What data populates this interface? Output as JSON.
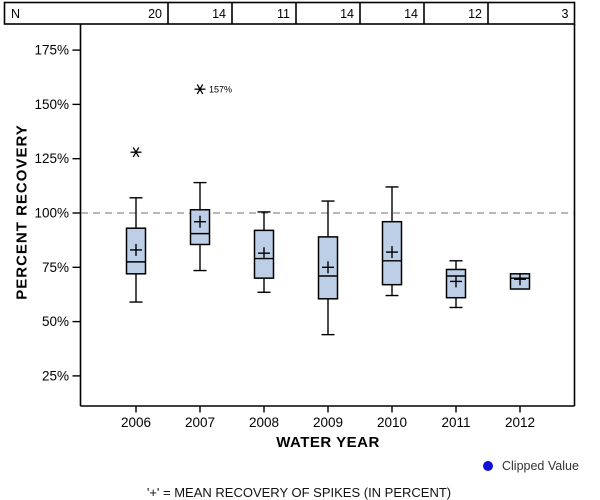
{
  "chart_data": {
    "type": "boxplot",
    "title": "",
    "xlabel": "WATER YEAR",
    "ylabel": "PERCENT RECOVERY",
    "footnote": "'+' = MEAN RECOVERY OF SPIKES (IN PERCENT)",
    "n_label": "N",
    "categories": [
      "2006",
      "2007",
      "2008",
      "2009",
      "2010",
      "2011",
      "2012"
    ],
    "n_values": [
      20,
      14,
      11,
      14,
      14,
      12,
      3
    ],
    "y_ticks": [
      {
        "value": 175,
        "label": "175%"
      },
      {
        "value": 150,
        "label": "150%"
      },
      {
        "value": 125,
        "label": "125%"
      },
      {
        "value": 100,
        "label": "100%"
      },
      {
        "value": 75,
        "label": "75%"
      },
      {
        "value": 50,
        "label": "50%"
      },
      {
        "value": 25,
        "label": "25%"
      }
    ],
    "ylim": [
      10,
      188
    ],
    "grid": false,
    "reference_line": {
      "value": 100,
      "style": "dashed",
      "color": "#8c8c8c"
    },
    "series": [
      {
        "year": "2006",
        "n": 20,
        "whisker_low": 59,
        "q1": 72,
        "median": 77.5,
        "mean": 83,
        "q3": 93,
        "whisker_high": 107,
        "outliers": [
          {
            "value": 128,
            "label": ""
          }
        ]
      },
      {
        "year": "2007",
        "n": 14,
        "whisker_low": 73.5,
        "q1": 85.5,
        "median": 90.5,
        "mean": 96,
        "q3": 101.5,
        "whisker_high": 114,
        "outliers": [
          {
            "value": 157,
            "label": "157%"
          }
        ]
      },
      {
        "year": "2008",
        "n": 11,
        "whisker_low": 63.5,
        "q1": 70,
        "median": 79,
        "mean": 81.5,
        "q3": 92,
        "whisker_high": 100.5,
        "outliers": []
      },
      {
        "year": "2009",
        "n": 14,
        "whisker_low": 44,
        "q1": 60.5,
        "median": 71,
        "mean": 75,
        "q3": 89,
        "whisker_high": 105.5,
        "outliers": []
      },
      {
        "year": "2010",
        "n": 14,
        "whisker_low": 62,
        "q1": 67,
        "median": 78,
        "mean": 82,
        "q3": 96,
        "whisker_high": 112,
        "outliers": []
      },
      {
        "year": "2011",
        "n": 12,
        "whisker_low": 56.5,
        "q1": 61,
        "median": 71,
        "mean": 68.5,
        "q3": 74,
        "whisker_high": 78,
        "outliers": []
      },
      {
        "year": "2012",
        "n": 3,
        "whisker_low": null,
        "q1": 65,
        "median": 70,
        "mean": 69.5,
        "q3": 72,
        "whisker_high": null,
        "outliers": []
      }
    ],
    "legend": {
      "label": "Clipped Value",
      "marker": "filled-circle",
      "marker_color": "#0f0fd9"
    },
    "legend_position": "bottom-right",
    "colors": {
      "box_fill": "#bccfe6",
      "box_stroke": "#000000",
      "frame": "#000000"
    }
  }
}
